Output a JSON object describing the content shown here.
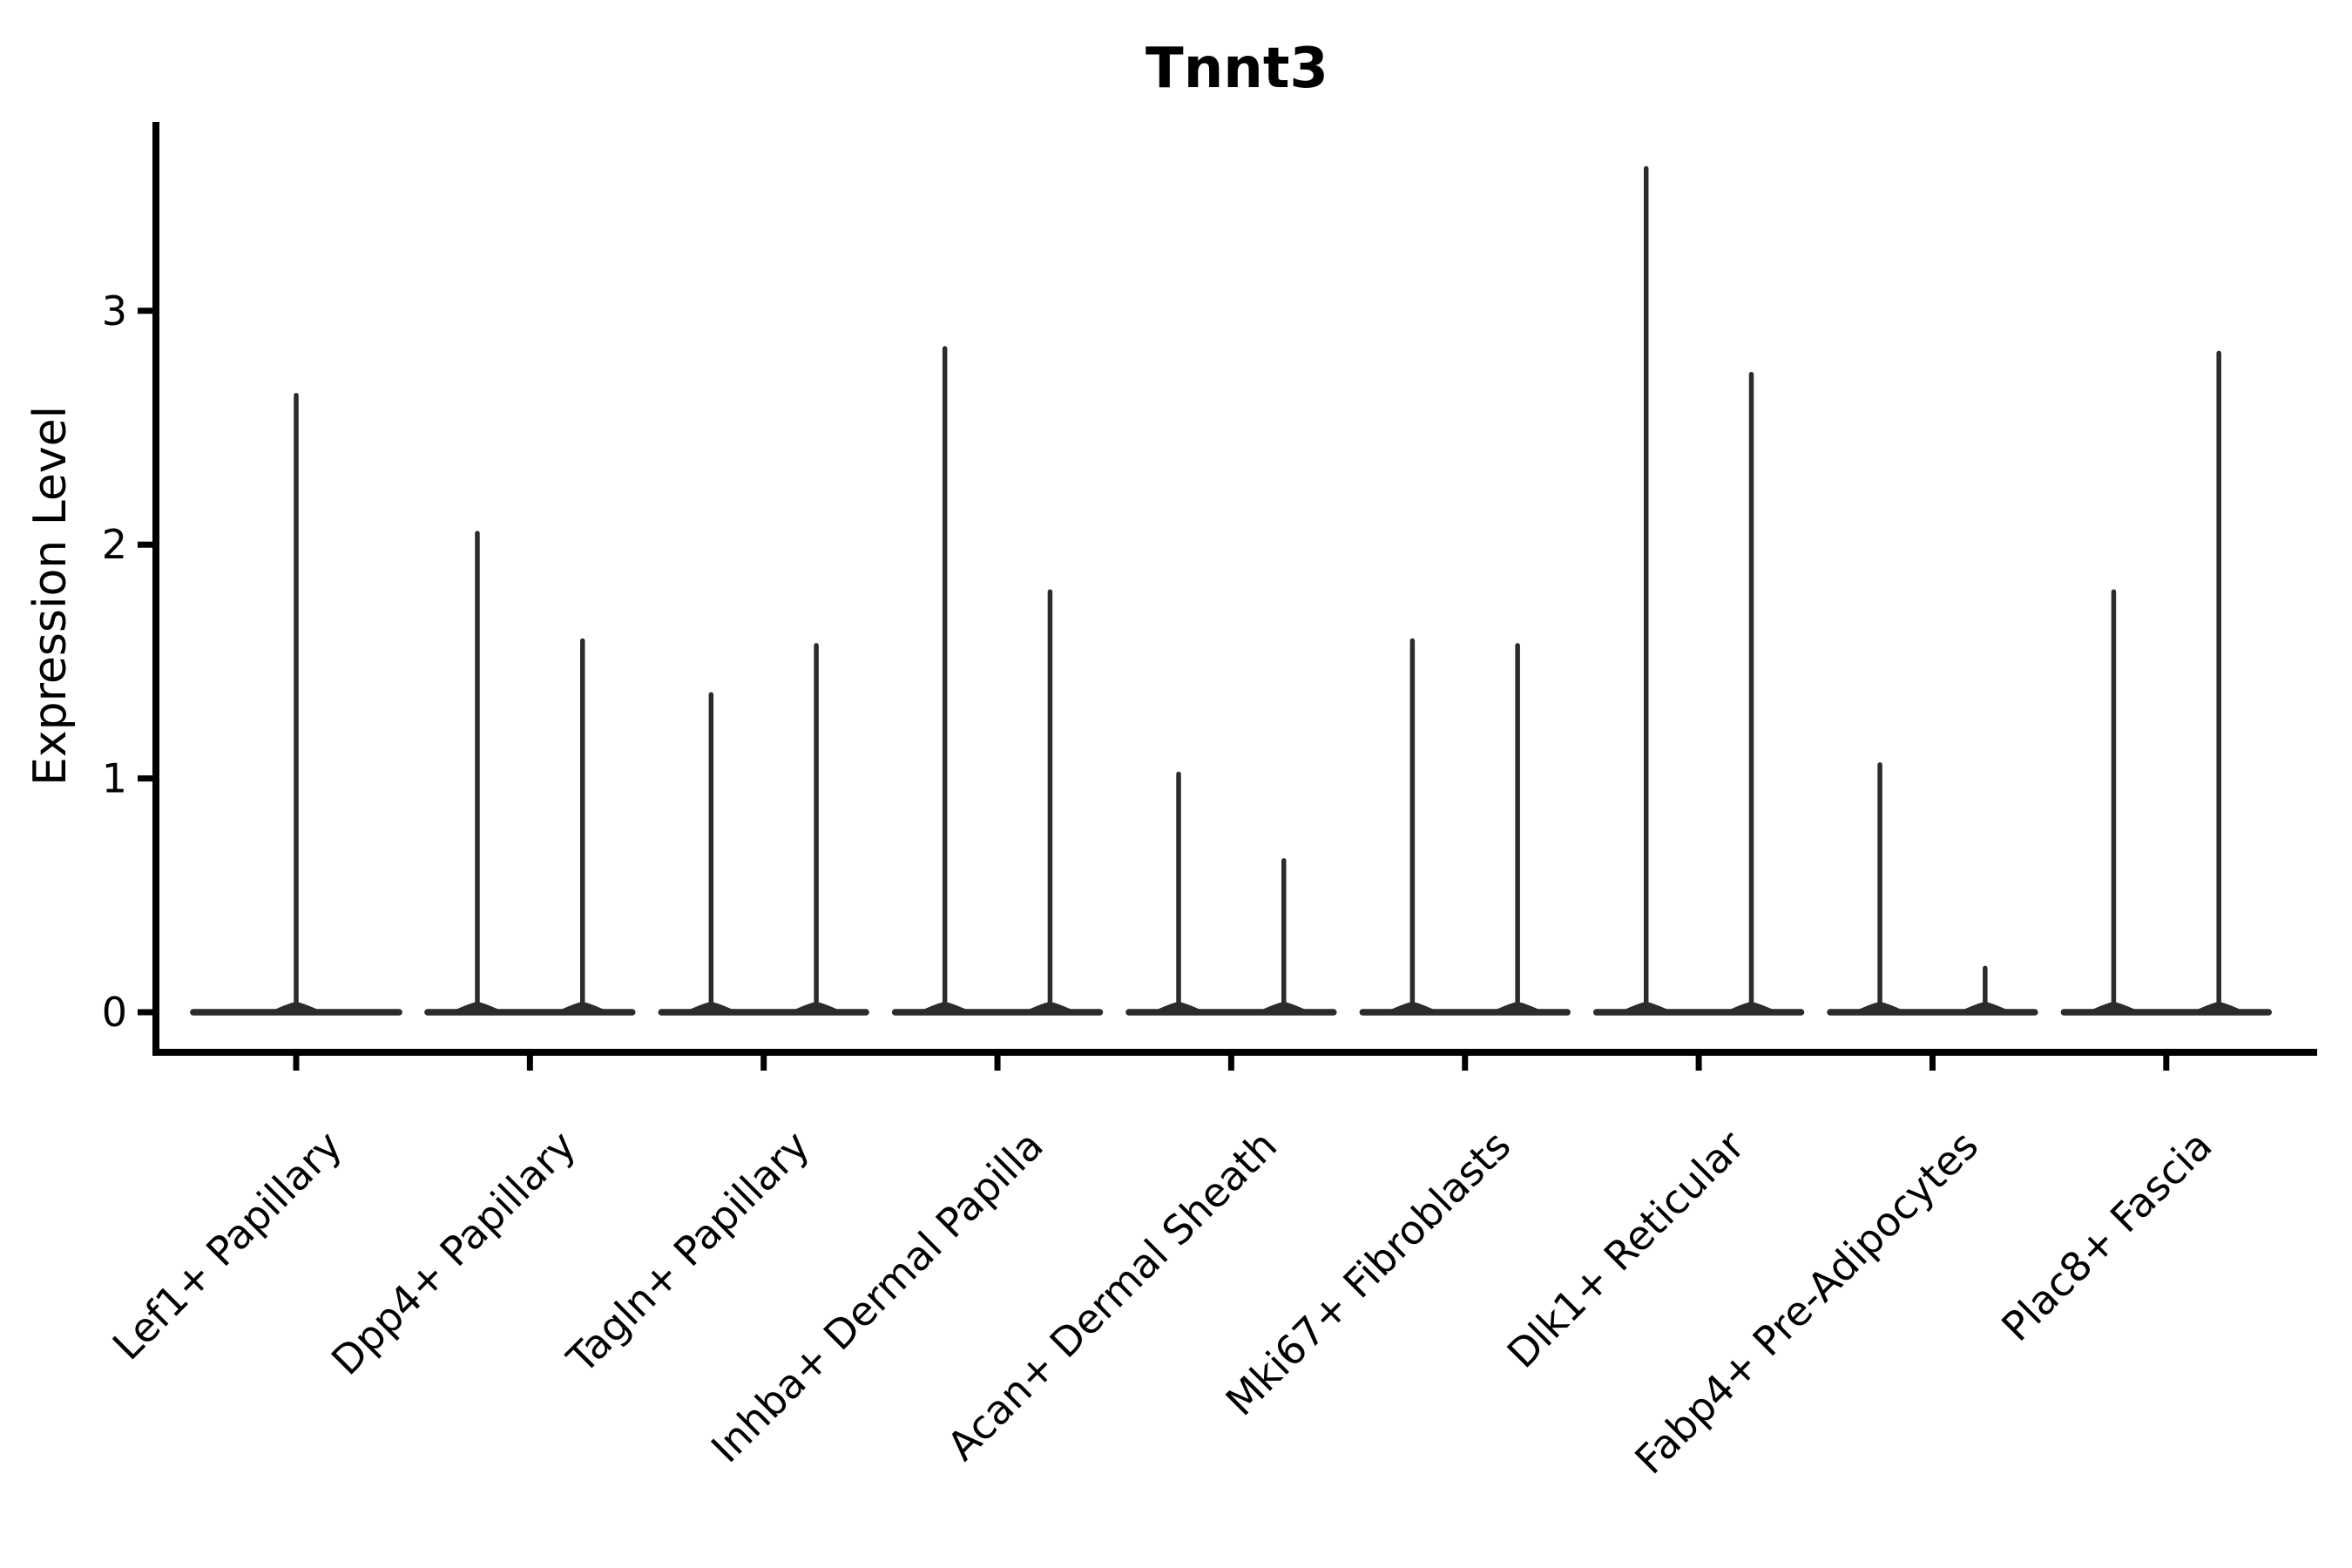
{
  "title": "Tnnt3",
  "axes": {
    "ylabel": "Expression Level",
    "ytick_labels": [
      "0",
      "1",
      "2",
      "3"
    ]
  },
  "chart_data": {
    "type": "violin",
    "title": "Tnnt3",
    "xlabel": "",
    "ylabel": "Expression Level",
    "yticks": [
      0,
      1,
      2,
      3
    ],
    "ylim": [
      -0.17,
      3.81
    ],
    "grid": false,
    "legend": "none",
    "violin_color": "#2b2b2b",
    "axis_color": "#000000",
    "baseline_value": 0,
    "categories": [
      "Lef1+ Papillary",
      "Dpp4+ Papillary",
      "Tagln+ Papillary",
      "Inhba+ Dermal Papilla",
      "Acan+ Dermal Sheath",
      "Mki67+ Fibroblasts",
      "Dlk1+ Reticular",
      "Fabp4+ Pre-Adipocytes",
      "Plac8+ Fascia"
    ],
    "series": [
      {
        "category": "Lef1+ Papillary",
        "violins": [
          {
            "offset": 0.0,
            "width": 0.91,
            "bulk": 0,
            "max": 2.65
          }
        ]
      },
      {
        "category": "Dpp4+ Papillary",
        "violins": [
          {
            "offset": -0.225,
            "width": 0.455,
            "bulk": 0,
            "max": 2.06
          },
          {
            "offset": 0.225,
            "width": 0.455,
            "bulk": 0,
            "max": 1.6
          }
        ]
      },
      {
        "category": "Tagln+ Papillary",
        "violins": [
          {
            "offset": -0.225,
            "width": 0.455,
            "bulk": 0,
            "max": 1.37
          },
          {
            "offset": 0.225,
            "width": 0.455,
            "bulk": 0,
            "max": 1.58
          }
        ]
      },
      {
        "category": "Inhba+ Dermal Papilla",
        "violins": [
          {
            "offset": -0.225,
            "width": 0.455,
            "bulk": 0,
            "max": 2.85
          },
          {
            "offset": 0.225,
            "width": 0.455,
            "bulk": 0,
            "max": 1.81
          }
        ]
      },
      {
        "category": "Acan+ Dermal Sheath",
        "violins": [
          {
            "offset": -0.225,
            "width": 0.455,
            "bulk": 0,
            "max": 1.03
          },
          {
            "offset": 0.225,
            "width": 0.455,
            "bulk": 0,
            "max": 0.66
          }
        ]
      },
      {
        "category": "Mki67+ Fibroblasts",
        "violins": [
          {
            "offset": -0.225,
            "width": 0.455,
            "bulk": 0,
            "max": 1.6
          },
          {
            "offset": 0.225,
            "width": 0.455,
            "bulk": 0,
            "max": 1.58
          }
        ]
      },
      {
        "category": "Dlk1+ Reticular",
        "violins": [
          {
            "offset": -0.225,
            "width": 0.455,
            "bulk": 0,
            "max": 3.62
          },
          {
            "offset": 0.225,
            "width": 0.455,
            "bulk": 0,
            "max": 2.74
          }
        ]
      },
      {
        "category": "Fabp4+ Pre-Adipocytes",
        "violins": [
          {
            "offset": -0.225,
            "width": 0.455,
            "bulk": 0,
            "max": 1.07
          },
          {
            "offset": 0.225,
            "width": 0.455,
            "bulk": 0,
            "max": 0.2
          }
        ]
      },
      {
        "category": "Plac8+ Fascia",
        "violins": [
          {
            "offset": -0.225,
            "width": 0.455,
            "bulk": 0,
            "max": 1.81
          },
          {
            "offset": 0.225,
            "width": 0.455,
            "bulk": 0,
            "max": 2.83
          }
        ]
      }
    ]
  }
}
